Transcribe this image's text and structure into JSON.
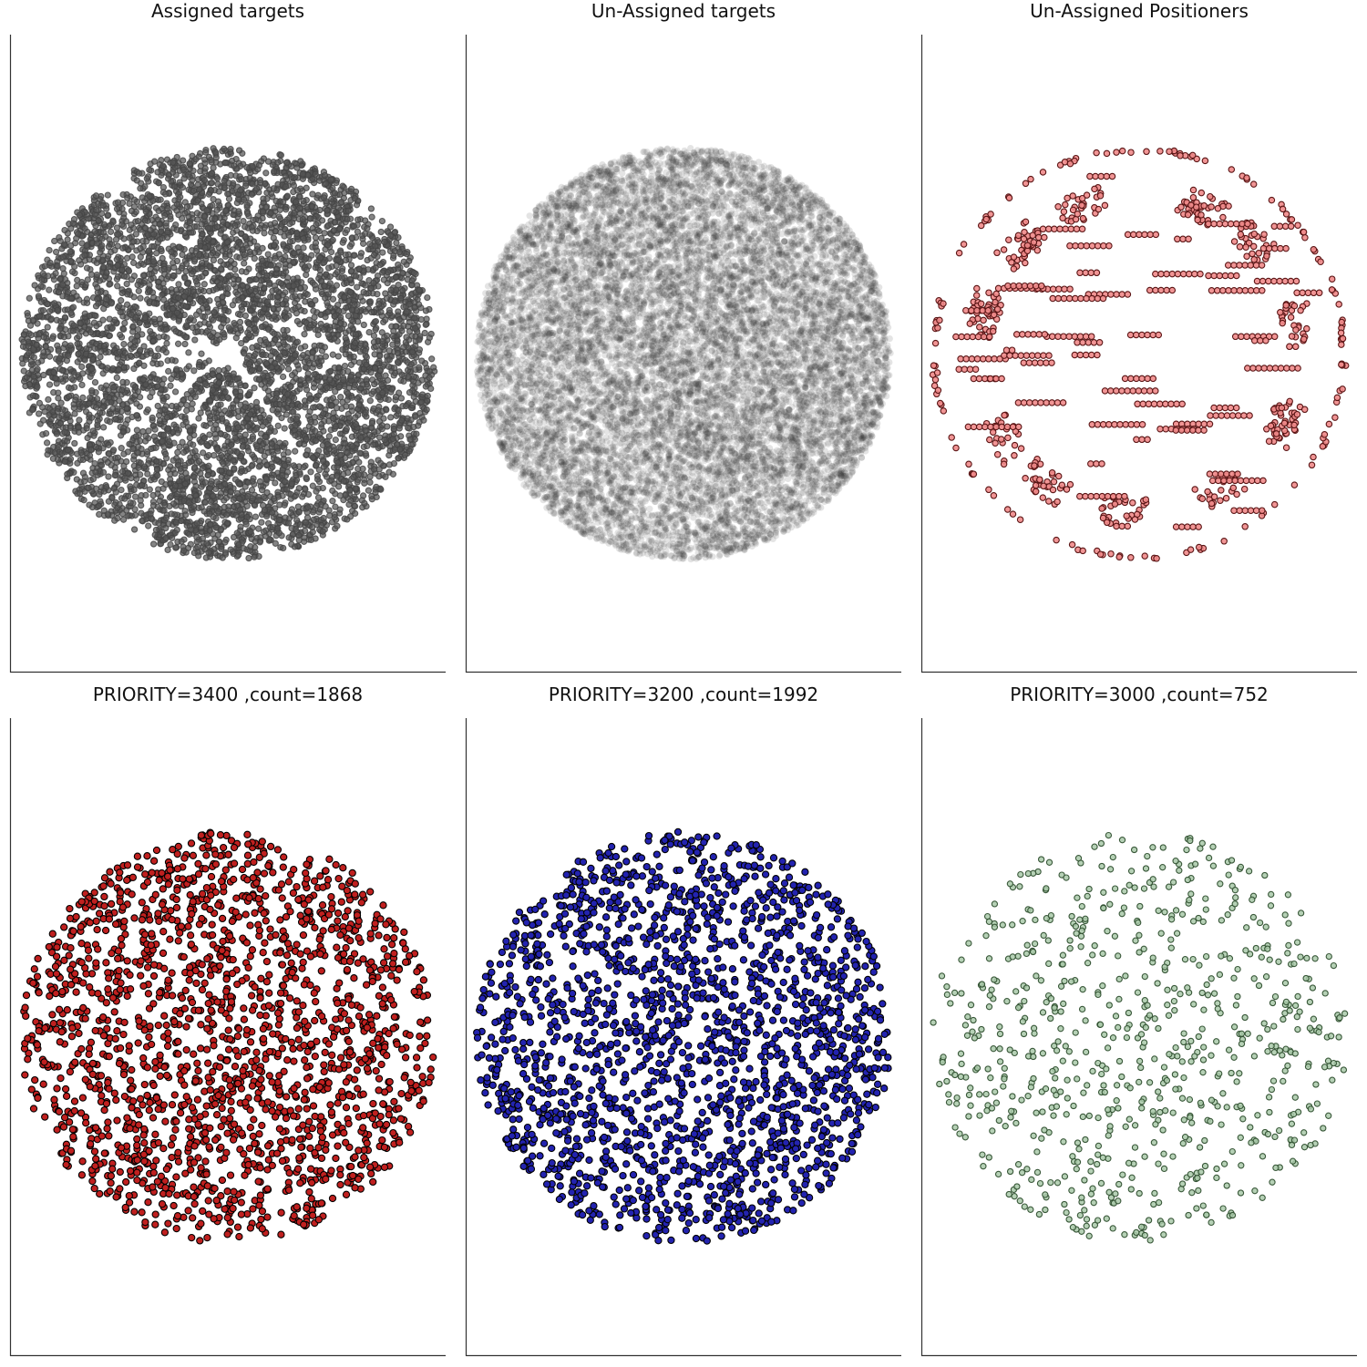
{
  "chart_data": [
    {
      "type": "scatter",
      "title": "Assigned targets",
      "distribution": "uniform-disk",
      "center": [
        0,
        0
      ],
      "radius": 1,
      "n": 5600,
      "xlim": [
        -1.05,
        1.05
      ],
      "ylim": [
        -1.55,
        1.55
      ],
      "marker": {
        "fill": "#555555",
        "stroke": "#444444",
        "alpha": 0.72,
        "size": 3.1
      },
      "features": "fibre-patrol gaps radiating from a hole at the centre, notched rim",
      "seed": 11
    },
    {
      "type": "scatter",
      "title": "Un-Assigned targets",
      "distribution": "uniform-disk",
      "center": [
        0,
        0
      ],
      "radius": 1,
      "n": 14000,
      "xlim": [
        -1.05,
        1.05
      ],
      "ylim": [
        -1.55,
        1.55
      ],
      "marker": {
        "fill": "#2b2b2b",
        "stroke": "none",
        "alpha": 0.13,
        "size": 3.6
      },
      "seed": 23
    },
    {
      "type": "scatter",
      "title": "Un-Assigned Positioners",
      "distribution": "clustered-ring",
      "center": [
        0,
        0
      ],
      "radius": 1,
      "n": 900,
      "xlim": [
        -1.05,
        1.05
      ],
      "ylim": [
        -1.55,
        1.55
      ],
      "marker": {
        "fill": "#f08a8a",
        "stroke": "#5a1515",
        "alpha": 0.9,
        "size": 3.2
      },
      "features": "edge ring, dense wedge clusters near the rim, short horizontal rows",
      "seed": 37
    },
    {
      "type": "scatter",
      "title": "PRIORITY=3400 ,count=1868",
      "distribution": "uniform-disk",
      "center": [
        0,
        0
      ],
      "radius": 1,
      "n": 1868,
      "xlim": [
        -1.05,
        1.05
      ],
      "ylim": [
        -1.55,
        1.55
      ],
      "marker": {
        "fill": "#c0201f",
        "stroke": "#000000",
        "alpha": 1,
        "size": 3.6
      },
      "seed": 41
    },
    {
      "type": "scatter",
      "title": "PRIORITY=3200 ,count=1992",
      "distribution": "uniform-disk",
      "center": [
        0,
        0
      ],
      "radius": 1,
      "n": 1992,
      "xlim": [
        -1.05,
        1.05
      ],
      "ylim": [
        -1.55,
        1.55
      ],
      "marker": {
        "fill": "#2323b0",
        "stroke": "#000000",
        "alpha": 1,
        "size": 3.6
      },
      "seed": 53
    },
    {
      "type": "scatter",
      "title": "PRIORITY=3000 ,count=752",
      "distribution": "uniform-disk",
      "center": [
        0,
        0
      ],
      "radius": 1,
      "n": 752,
      "xlim": [
        -1.05,
        1.05
      ],
      "ylim": [
        -1.55,
        1.55
      ],
      "marker": {
        "fill": "#a9c9a9",
        "stroke": "#2f4f2f",
        "alpha": 0.85,
        "size": 3.1
      },
      "seed": 67
    }
  ]
}
